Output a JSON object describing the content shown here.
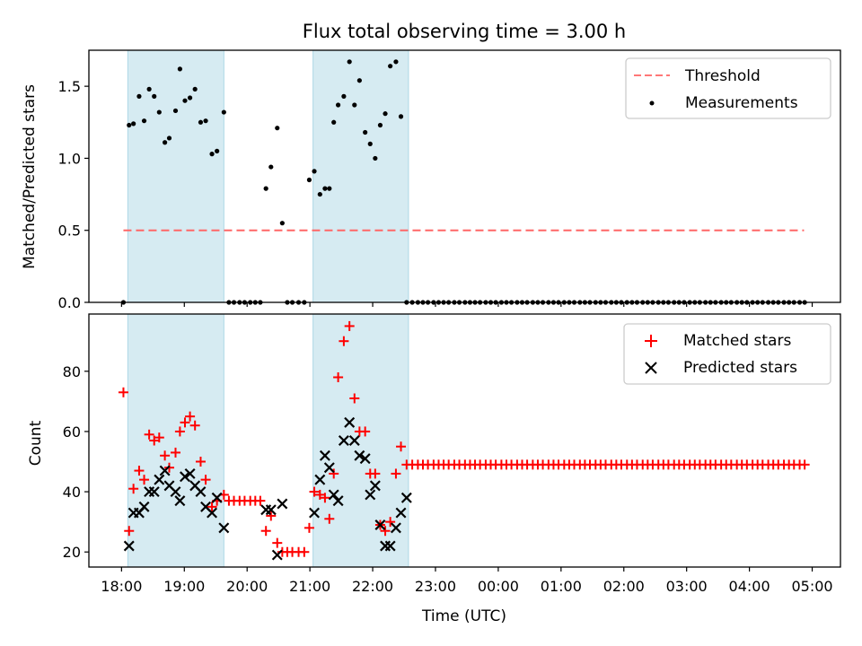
{
  "title": "Flux total observing time = 3.00 h",
  "colors": {
    "shade": "#add8e6",
    "threshold": "#ff6666",
    "measurement": "#000000",
    "matched": "#ff0000",
    "predicted": "#000000"
  },
  "chart_data": [
    {
      "type": "scatter",
      "name": "ratio-panel",
      "ylabel": "Matched/Predicted stars",
      "ylim": [
        0,
        1.75
      ],
      "yticks": [
        "0.0",
        "0.5",
        "1.0",
        "1.5"
      ],
      "ytick_values": [
        0,
        0.5,
        1.0,
        1.5
      ],
      "x_unit": "hours after 18:00 UTC",
      "xlim": [
        -0.52,
        11.45
      ],
      "shaded_spans": [
        [
          0.1,
          1.63
        ],
        [
          3.05,
          4.57
        ]
      ],
      "legend": [
        "Threshold",
        "Measurements"
      ],
      "threshold": {
        "y": 0.5,
        "x_start": 0.03,
        "x_end": 10.87
      },
      "measurements": {
        "x": [
          0.03,
          0.12,
          0.19,
          0.28,
          0.36,
          0.44,
          0.52,
          0.6,
          0.69,
          0.76,
          0.86,
          0.93,
          1.01,
          1.09,
          1.17,
          1.26,
          1.34,
          1.44,
          1.52,
          1.63,
          1.71,
          1.79,
          1.88,
          1.96,
          2.05,
          2.13,
          2.21,
          2.3,
          2.38,
          2.48,
          2.56,
          2.64,
          2.72,
          2.82,
          2.91,
          2.99,
          3.07,
          3.16,
          3.24,
          3.31,
          3.38,
          3.45,
          3.54,
          3.63,
          3.71,
          3.79,
          3.88,
          3.96,
          4.04,
          4.12,
          4.2,
          4.28,
          4.37,
          4.45,
          4.54,
          4.63,
          4.72,
          4.8,
          4.88,
          4.97,
          5.05,
          5.13,
          5.21,
          5.3,
          5.38,
          5.47,
          5.55,
          5.63,
          5.71,
          5.8,
          5.88,
          5.96,
          6.05,
          6.13,
          6.21,
          6.3,
          6.38,
          6.46,
          6.55,
          6.63,
          6.71,
          6.8,
          6.88,
          6.96,
          7.05,
          7.13,
          7.21,
          7.3,
          7.38,
          7.46,
          7.55,
          7.63,
          7.71,
          7.8,
          7.88,
          7.96,
          8.05,
          8.13,
          8.21,
          8.3,
          8.38,
          8.46,
          8.55,
          8.63,
          8.71,
          8.8,
          8.88,
          8.96,
          9.05,
          9.13,
          9.21,
          9.3,
          9.38,
          9.46,
          9.55,
          9.63,
          9.71,
          9.8,
          9.88,
          9.96,
          10.05,
          10.13,
          10.21,
          10.3,
          10.38,
          10.46,
          10.55,
          10.63,
          10.71,
          10.8,
          10.88
        ],
        "y": [
          0,
          1.23,
          1.24,
          1.43,
          1.26,
          1.48,
          1.43,
          1.32,
          1.11,
          1.14,
          1.33,
          1.62,
          1.4,
          1.42,
          1.48,
          1.25,
          1.26,
          1.03,
          1.05,
          1.32,
          0,
          0,
          0,
          0,
          0,
          0,
          0,
          0.79,
          0.94,
          1.21,
          0.55,
          0,
          0,
          0,
          0,
          0.85,
          0.91,
          0.75,
          0.79,
          0.79,
          1.25,
          1.37,
          1.43,
          1.67,
          1.37,
          1.54,
          1.18,
          1.1,
          1.0,
          1.23,
          1.31,
          1.64,
          1.67,
          1.29,
          0,
          0,
          0,
          0,
          0,
          0,
          0,
          0,
          0,
          0,
          0,
          0,
          0,
          0,
          0,
          0,
          0,
          0,
          0,
          0,
          0,
          0,
          0,
          0,
          0,
          0,
          0,
          0,
          0,
          0,
          0,
          0,
          0,
          0,
          0,
          0,
          0,
          0,
          0,
          0,
          0,
          0,
          0,
          0,
          0,
          0,
          0,
          0,
          0,
          0,
          0,
          0,
          0,
          0,
          0,
          0,
          0,
          0,
          0,
          0,
          0,
          0,
          0,
          0,
          0,
          0,
          0,
          0,
          0,
          0,
          0,
          0,
          0,
          0,
          0,
          0,
          0
        ]
      }
    },
    {
      "type": "scatter",
      "name": "count-panel",
      "ylabel": "Count",
      "xlabel": "Time (UTC)",
      "ylim": [
        15,
        99
      ],
      "yticks": [
        "20",
        "40",
        "60",
        "80"
      ],
      "ytick_values": [
        20,
        40,
        60,
        80
      ],
      "x_unit": "hours after 18:00 UTC",
      "xlim": [
        -0.52,
        11.45
      ],
      "xticks": [
        "18:00",
        "19:00",
        "20:00",
        "21:00",
        "22:00",
        "23:00",
        "00:00",
        "01:00",
        "02:00",
        "03:00",
        "04:00",
        "05:00"
      ],
      "xtick_values": [
        0,
        1,
        2,
        3,
        4,
        5,
        6,
        7,
        8,
        9,
        10,
        11
      ],
      "shaded_spans": [
        [
          0.1,
          1.63
        ],
        [
          3.05,
          4.57
        ]
      ],
      "legend": [
        "Matched stars",
        "Predicted stars"
      ],
      "series": [
        {
          "name": "Matched stars",
          "marker": "+",
          "x": [
            0.03,
            0.12,
            0.19,
            0.28,
            0.36,
            0.44,
            0.52,
            0.6,
            0.69,
            0.76,
            0.86,
            0.93,
            1.01,
            1.09,
            1.17,
            1.26,
            1.34,
            1.44,
            1.52,
            1.63,
            1.71,
            1.79,
            1.88,
            1.96,
            2.05,
            2.13,
            2.21,
            2.3,
            2.38,
            2.48,
            2.56,
            2.64,
            2.72,
            2.82,
            2.91,
            2.99,
            3.07,
            3.16,
            3.24,
            3.31,
            3.38,
            3.45,
            3.54,
            3.63,
            3.71,
            3.79,
            3.88,
            3.96,
            4.04,
            4.12,
            4.2,
            4.28,
            4.37,
            4.45,
            4.54,
            4.63,
            4.72,
            4.8,
            4.88,
            4.97,
            5.05,
            5.13,
            5.21,
            5.3,
            5.38,
            5.47,
            5.55,
            5.63,
            5.71,
            5.8,
            5.88,
            5.96,
            6.05,
            6.13,
            6.21,
            6.3,
            6.38,
            6.46,
            6.55,
            6.63,
            6.71,
            6.8,
            6.88,
            6.96,
            7.05,
            7.13,
            7.21,
            7.3,
            7.38,
            7.46,
            7.55,
            7.63,
            7.71,
            7.8,
            7.88,
            7.96,
            8.05,
            8.13,
            8.21,
            8.3,
            8.38,
            8.46,
            8.55,
            8.63,
            8.71,
            8.8,
            8.88,
            8.96,
            9.05,
            9.13,
            9.21,
            9.3,
            9.38,
            9.46,
            9.55,
            9.63,
            9.71,
            9.8,
            9.88,
            9.96,
            10.05,
            10.13,
            10.21,
            10.3,
            10.38,
            10.46,
            10.55,
            10.63,
            10.71,
            10.8,
            10.88
          ],
          "y": [
            73,
            27,
            41,
            47,
            44,
            59,
            57,
            58,
            52,
            48,
            53,
            60,
            63,
            65,
            62,
            50,
            44,
            35,
            37,
            39,
            37,
            37,
            37,
            37,
            37,
            37,
            37,
            27,
            32,
            23,
            20,
            20,
            20,
            20,
            20,
            28,
            40,
            39,
            38,
            31,
            46,
            78,
            90,
            95,
            71,
            60,
            60,
            46,
            46,
            29,
            27,
            30,
            46,
            55,
            49,
            49,
            49,
            49,
            49,
            49,
            49,
            49,
            49,
            49,
            49,
            49,
            49,
            49,
            49,
            49,
            49,
            49,
            49,
            49,
            49,
            49,
            49,
            49,
            49,
            49,
            49,
            49,
            49,
            49,
            49,
            49,
            49,
            49,
            49,
            49,
            49,
            49,
            49,
            49,
            49,
            49,
            49,
            49,
            49,
            49,
            49,
            49,
            49,
            49,
            49,
            49,
            49,
            49,
            49,
            49,
            49,
            49,
            49,
            49,
            49,
            49,
            49,
            49,
            49,
            49,
            49,
            49,
            49,
            49,
            49,
            49,
            49,
            49,
            49,
            49,
            49
          ]
        },
        {
          "name": "Predicted stars",
          "marker": "x",
          "x": [
            0.12,
            0.19,
            0.28,
            0.36,
            0.44,
            0.52,
            0.6,
            0.69,
            0.76,
            0.86,
            0.93,
            1.01,
            1.09,
            1.17,
            1.26,
            1.34,
            1.44,
            1.52,
            1.63,
            2.3,
            2.38,
            2.48,
            2.56,
            3.07,
            3.16,
            3.24,
            3.31,
            3.38,
            3.45,
            3.54,
            3.63,
            3.71,
            3.79,
            3.88,
            3.96,
            4.04,
            4.12,
            4.2,
            4.28,
            4.37,
            4.45,
            4.54
          ],
          "y": [
            22,
            33,
            33,
            35,
            40,
            40,
            44,
            47,
            42,
            40,
            37,
            45,
            46,
            42,
            40,
            35,
            33,
            38,
            28,
            34,
            34,
            19,
            36,
            33,
            44,
            52,
            48,
            39,
            37,
            57,
            63,
            57,
            52,
            51,
            39,
            42,
            29,
            22,
            22,
            28,
            33,
            38
          ]
        }
      ]
    }
  ]
}
